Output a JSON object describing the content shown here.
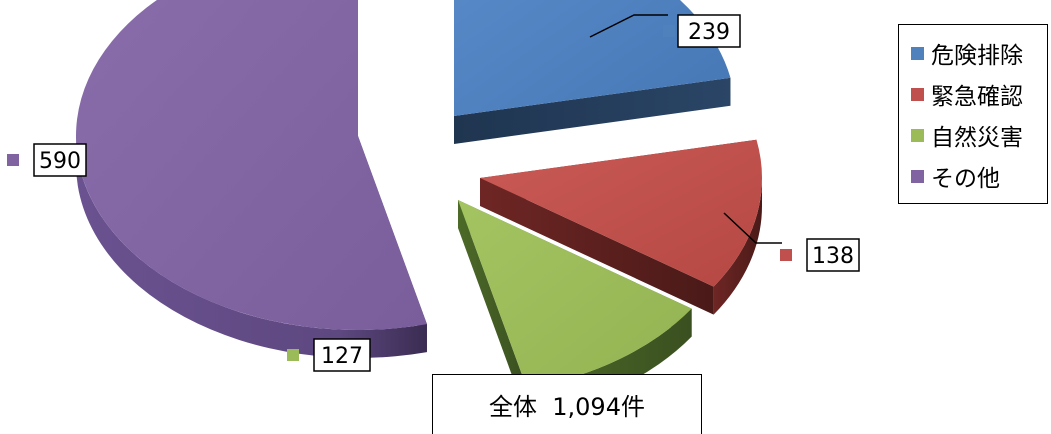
{
  "chart_data": {
    "type": "pie",
    "title": "",
    "categories": [
      "危険排除",
      "緊急確認",
      "自然災害",
      "その他"
    ],
    "values": [
      239,
      138,
      127,
      590
    ],
    "colors": [
      "#4f81bd",
      "#c0504d",
      "#9bbb59",
      "#8064a2"
    ],
    "exploded": true,
    "three_d": true,
    "legend_position": "right"
  },
  "total": {
    "label": "全体",
    "value": "1,094件"
  }
}
